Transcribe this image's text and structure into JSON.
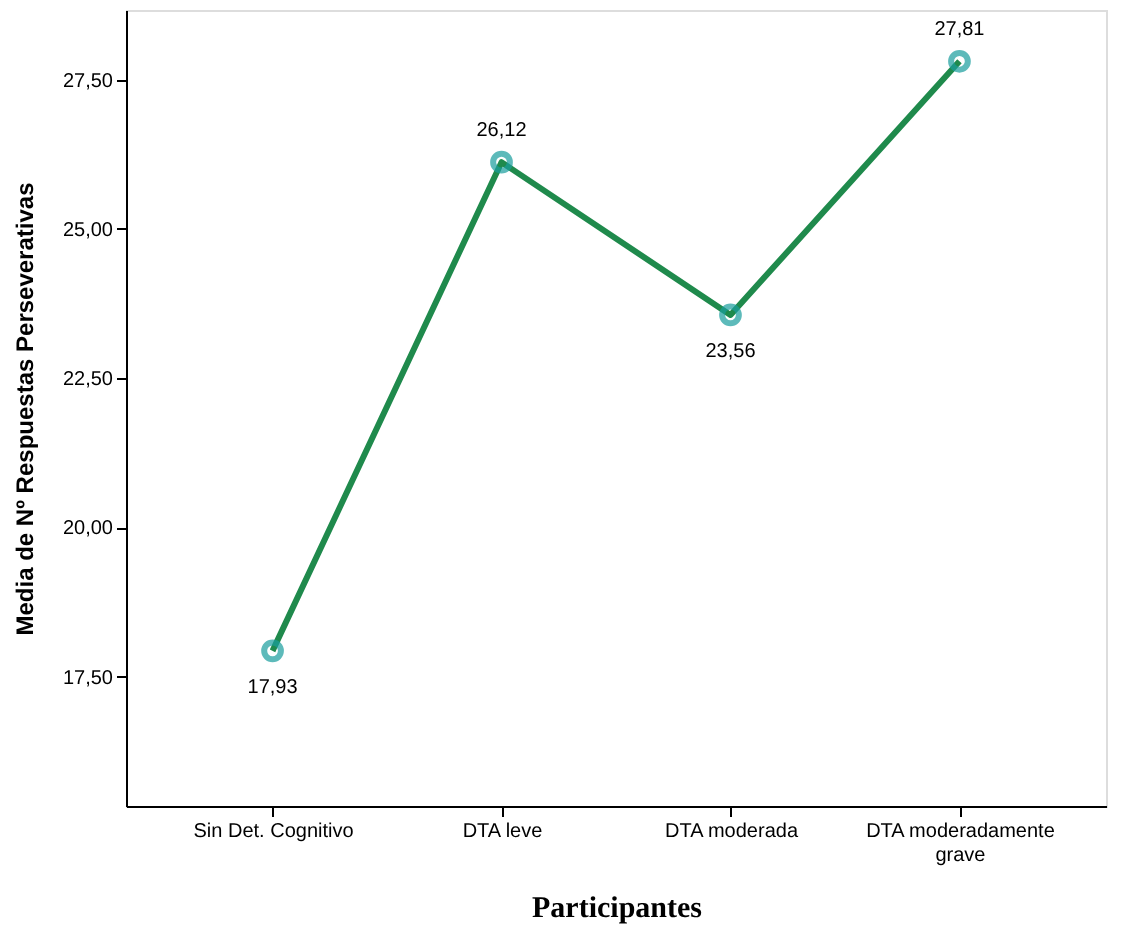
{
  "chart_data": {
    "type": "line",
    "xlabel": "Participantes",
    "ylabel": "Media de Nº Respuestas Perseverativas",
    "categories": [
      "Sin Det. Cognitivo",
      "DTA leve",
      "DTA moderada",
      "DTA moderadamente grave"
    ],
    "series": [
      {
        "color": "#1f8a4c",
        "colors": [
          "#1a9e9e",
          "#1a9e9e",
          "#1a9e9e",
          "#1a9e9e"
        ],
        "values": [
          17.93,
          26.12,
          23.56,
          27.81
        ],
        "value_labels": [
          "17,93",
          "26,12",
          "23,56",
          "27,81"
        ]
      }
    ],
    "ylim": [
      15.33,
      28.67
    ],
    "yticks": [
      {
        "value": 17.5,
        "label": "17,50"
      },
      {
        "value": 20,
        "label": "20,00"
      },
      {
        "value": 22.5,
        "label": "22,50"
      },
      {
        "value": 25,
        "label": "25,00"
      },
      {
        "value": 27.5,
        "label": "27,50"
      }
    ],
    "grid": false,
    "marker": "circle",
    "line_style": "solid"
  }
}
